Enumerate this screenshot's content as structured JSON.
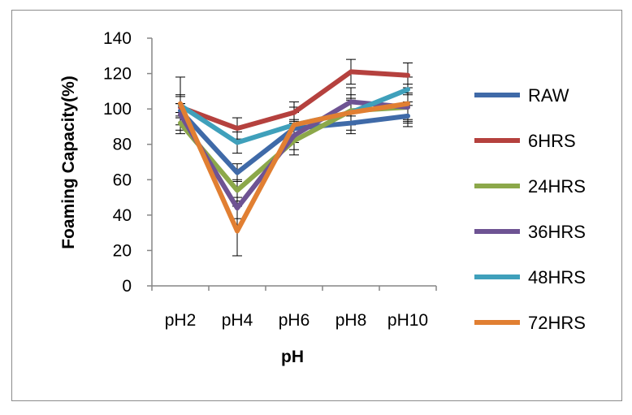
{
  "chart_data": {
    "type": "line",
    "title": "",
    "xlabel": "pH",
    "ylabel": "Foaming Capacity(%)",
    "ylim": [
      0,
      140
    ],
    "yticks": [
      0,
      20,
      40,
      60,
      80,
      100,
      120,
      140
    ],
    "categories": [
      "pH2",
      "pH4",
      "pH6",
      "pH8",
      "pH10"
    ],
    "grid": false,
    "legend_position": "right",
    "series": [
      {
        "name": "RAW",
        "color": "#3f6aa8",
        "values": [
          99,
          64,
          89,
          92,
          96
        ],
        "error": [
          4,
          5,
          5,
          6,
          6
        ]
      },
      {
        "name": "6HRS",
        "color": "#b5413e",
        "values": [
          101,
          89,
          98,
          121,
          119
        ],
        "error": [
          6,
          6,
          6,
          7,
          7
        ]
      },
      {
        "name": "24HRS",
        "color": "#8ca84a",
        "values": [
          92,
          54,
          82,
          99,
          101
        ],
        "error": [
          6,
          6,
          8,
          7,
          7
        ]
      },
      {
        "name": "36HRS",
        "color": "#6e5393",
        "values": [
          97,
          44,
          85,
          104,
          101
        ],
        "error": [
          6,
          6,
          8,
          8,
          8
        ]
      },
      {
        "name": "48HRS",
        "color": "#3fa0bb",
        "values": [
          102,
          81,
          91,
          98,
          111
        ],
        "error": [
          6,
          6,
          7,
          7,
          7
        ]
      },
      {
        "name": "72HRS",
        "color": "#e17f32",
        "values": [
          103,
          31,
          91,
          98,
          103
        ],
        "error": [
          15,
          14,
          10,
          10,
          11
        ]
      }
    ]
  }
}
